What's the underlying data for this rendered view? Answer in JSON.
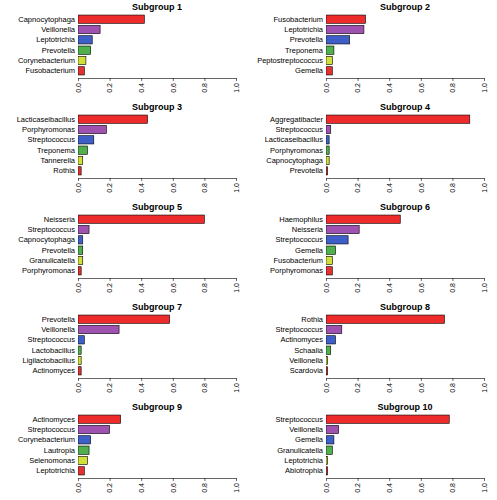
{
  "chart_data": [
    {
      "type": "bar",
      "orientation": "horizontal",
      "title": "Subgroup 1",
      "categories": [
        "Capnocytophaga",
        "Veillonella",
        "Leptotrichia",
        "Prevotella",
        "Corynebacterium",
        "Fusobacterium"
      ],
      "values": [
        0.42,
        0.14,
        0.09,
        0.08,
        0.05,
        0.04
      ],
      "colors": [
        "#ee2b2b",
        "#a052b0",
        "#3f5fc8",
        "#4fb04c",
        "#d2e03a",
        "#e23232"
      ],
      "xlim": [
        0,
        1
      ],
      "xticks": [
        {
          "value": 0,
          "label": "0.0"
        },
        0.2,
        0.4,
        0.6,
        0.8,
        {
          "value": 1,
          "label": "1.0"
        }
      ]
    },
    {
      "type": "bar",
      "orientation": "horizontal",
      "title": "Subgroup 2",
      "categories": [
        "Fusobacterium",
        "Leptotrichia",
        "Prevotella",
        "Treponema",
        "Peptostreptococcus",
        "Gemella"
      ],
      "values": [
        0.25,
        0.24,
        0.15,
        0.05,
        0.04,
        0.04
      ],
      "colors": [
        "#ee2b2b",
        "#a052b0",
        "#3f5fc8",
        "#4fb04c",
        "#d2e03a",
        "#e23232"
      ],
      "xlim": [
        0,
        1
      ],
      "xticks": [
        {
          "value": 0,
          "label": "0.0"
        },
        0.2,
        0.4,
        0.6,
        0.8,
        {
          "value": 1,
          "label": "1.0"
        }
      ]
    },
    {
      "type": "bar",
      "orientation": "horizontal",
      "title": "Subgroup 3",
      "categories": [
        "Lacticaseibacillus",
        "Porphyromonas",
        "Streptococcus",
        "Treponema",
        "Tannerella",
        "Rothia"
      ],
      "values": [
        0.44,
        0.18,
        0.1,
        0.06,
        0.03,
        0.02
      ],
      "colors": [
        "#ee2b2b",
        "#a052b0",
        "#3f5fc8",
        "#4fb04c",
        "#d2e03a",
        "#e23232"
      ],
      "xlim": [
        0,
        1
      ],
      "xticks": [
        {
          "value": 0,
          "label": "0.0"
        },
        0.2,
        0.4,
        0.6,
        0.8,
        {
          "value": 1,
          "label": "1.0"
        }
      ]
    },
    {
      "type": "bar",
      "orientation": "horizontal",
      "title": "Subgroup 4",
      "categories": [
        "Aggregatibacter",
        "Streptococcus",
        "Lacticaseibacillus",
        "Porphyromonas",
        "Capnocytophaga",
        "Prevotella"
      ],
      "values": [
        0.91,
        0.03,
        0.02,
        0.02,
        0.02,
        0.01
      ],
      "colors": [
        "#ee2b2b",
        "#a052b0",
        "#3f5fc8",
        "#4fb04c",
        "#d2e03a",
        "#e23232"
      ],
      "xlim": [
        0,
        1
      ],
      "xticks": [
        {
          "value": 0,
          "label": "0.0"
        },
        0.2,
        0.4,
        0.6,
        0.8,
        {
          "value": 1,
          "label": "1.0"
        }
      ]
    },
    {
      "type": "bar",
      "orientation": "horizontal",
      "title": "Subgroup 5",
      "categories": [
        "Neisseria",
        "Streptococcus",
        "Capnocytophaga",
        "Prevotella",
        "Granulicatella",
        "Porphyromonas"
      ],
      "values": [
        0.8,
        0.07,
        0.03,
        0.03,
        0.03,
        0.02
      ],
      "colors": [
        "#ee2b2b",
        "#a052b0",
        "#3f5fc8",
        "#4fb04c",
        "#d2e03a",
        "#e23232"
      ],
      "xlim": [
        0,
        1
      ],
      "xticks": [
        {
          "value": 0,
          "label": "0.0"
        },
        0.2,
        0.4,
        0.6,
        0.8,
        {
          "value": 1,
          "label": "1.0"
        }
      ]
    },
    {
      "type": "bar",
      "orientation": "horizontal",
      "title": "Subgroup 6",
      "categories": [
        "Haemophilus",
        "Neisseria",
        "Streptococcus",
        "Gemella",
        "Fusobacterium",
        "Porphyromonas"
      ],
      "values": [
        0.47,
        0.21,
        0.14,
        0.06,
        0.04,
        0.04
      ],
      "colors": [
        "#ee2b2b",
        "#a052b0",
        "#3f5fc8",
        "#4fb04c",
        "#d2e03a",
        "#e23232"
      ],
      "xlim": [
        0,
        1
      ],
      "xticks": [
        {
          "value": 0,
          "label": "0.0"
        },
        0.2,
        0.4,
        0.6,
        0.8,
        {
          "value": 1,
          "label": "1.0"
        }
      ]
    },
    {
      "type": "bar",
      "orientation": "horizontal",
      "title": "Subgroup 7",
      "categories": [
        "Prevotella",
        "Veillonella",
        "Streptococcus",
        "Lactobacillus",
        "Ligilactobacillus",
        "Actinomyces"
      ],
      "values": [
        0.58,
        0.26,
        0.04,
        0.02,
        0.02,
        0.02
      ],
      "colors": [
        "#ee2b2b",
        "#a052b0",
        "#3f5fc8",
        "#4fb04c",
        "#d2e03a",
        "#e23232"
      ],
      "xlim": [
        0,
        1
      ],
      "xticks": [
        {
          "value": 0,
          "label": "0.0"
        },
        0.2,
        0.4,
        0.6,
        0.8,
        {
          "value": 1,
          "label": "1.0"
        }
      ]
    },
    {
      "type": "bar",
      "orientation": "horizontal",
      "title": "Subgroup 8",
      "categories": [
        "Rothia",
        "Streptococcus",
        "Actinomyces",
        "Schaalia",
        "Veillonella",
        "Scardovia"
      ],
      "values": [
        0.75,
        0.1,
        0.06,
        0.03,
        0.01,
        0.01
      ],
      "colors": [
        "#ee2b2b",
        "#a052b0",
        "#3f5fc8",
        "#4fb04c",
        "#d2e03a",
        "#e23232"
      ],
      "xlim": [
        0,
        1
      ],
      "xticks": [
        {
          "value": 0,
          "label": "0.0"
        },
        0.2,
        0.4,
        0.6,
        0.8,
        {
          "value": 1,
          "label": "1.0"
        }
      ]
    },
    {
      "type": "bar",
      "orientation": "horizontal",
      "title": "Subgroup 9",
      "categories": [
        "Actinomyces",
        "Streptococcus",
        "Corynebacterium",
        "Lautropia",
        "Selenomonas",
        "Leptotrichia"
      ],
      "values": [
        0.27,
        0.2,
        0.08,
        0.07,
        0.06,
        0.04
      ],
      "colors": [
        "#ee2b2b",
        "#a052b0",
        "#3f5fc8",
        "#4fb04c",
        "#d2e03a",
        "#e23232"
      ],
      "xlim": [
        0,
        1
      ],
      "xticks": [
        {
          "value": 0,
          "label": "0.0"
        },
        0.2,
        0.4,
        0.6,
        0.8,
        {
          "value": 1,
          "label": "1.0"
        }
      ]
    },
    {
      "type": "bar",
      "orientation": "horizontal",
      "title": "Subgroup 10",
      "categories": [
        "Streptococcus",
        "Veillonella",
        "Gemella",
        "Granulicatella",
        "Leptotrichia",
        "Abiotrophia"
      ],
      "values": [
        0.78,
        0.08,
        0.05,
        0.04,
        0.01,
        0.01
      ],
      "colors": [
        "#ee2b2b",
        "#a052b0",
        "#3f5fc8",
        "#4fb04c",
        "#d2e03a",
        "#e23232"
      ],
      "xlim": [
        0,
        1
      ],
      "xticks": [
        {
          "value": 0,
          "label": "0.0"
        },
        0.2,
        0.4,
        0.6,
        0.8,
        {
          "value": 1,
          "label": "1.0"
        }
      ]
    }
  ]
}
